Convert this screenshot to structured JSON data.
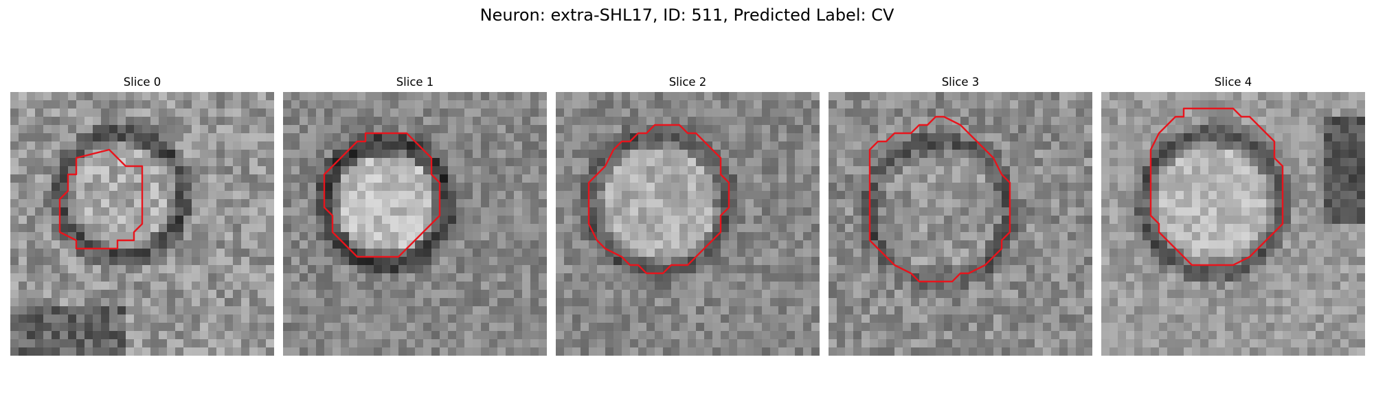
{
  "figure": {
    "title": "Neuron: extra-SHL17, ID: 511, Predicted Label: CV"
  },
  "panels": [
    {
      "title": "Slice 0"
    },
    {
      "title": "Slice 1"
    },
    {
      "title": "Slice 2"
    },
    {
      "title": "Slice 3"
    },
    {
      "title": "Slice 4"
    }
  ],
  "colors": {
    "contour": "#e8141c",
    "background": "#ffffff"
  }
}
